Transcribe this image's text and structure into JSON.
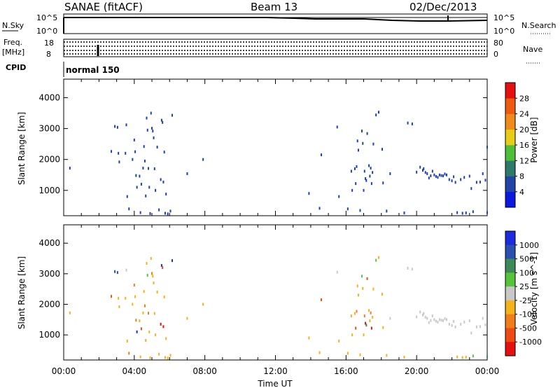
{
  "header": {
    "title": "SANAE (fitACF)",
    "beam": "Beam 13",
    "date": "02/Dec/2013"
  },
  "status_rows": {
    "nsky_label": "N.Sky",
    "nsearch_label": "N.Search",
    "freq_label_line1": "Freq.",
    "freq_label_line2": "[MHz]",
    "nave_label": "Nave",
    "cpid_label": "CPID",
    "cpid_value": "normal 150",
    "noise_ticks_left": [
      "10^5",
      "10^0"
    ],
    "noise_ticks_right": [
      "10^5",
      "10^0"
    ],
    "freq_ticks": [
      "18",
      "8"
    ],
    "nave_ticks": [
      "80",
      "0"
    ]
  },
  "colors": {
    "power_dots": "#1f3fb0",
    "axis": "#000000"
  },
  "chart_data": [
    {
      "type": "scatter",
      "title": "Power",
      "ylabel": "Slant Range [km]",
      "xlabel": "",
      "xlim": [
        0,
        24
      ],
      "ylim": [
        180,
        4600
      ],
      "yticks": [
        1000,
        2000,
        3000,
        4000
      ],
      "colorbar": {
        "label": "Power [dB]",
        "tick_labels": [
          "4",
          "8",
          "12",
          "16",
          "20",
          "24",
          "28"
        ],
        "colors": [
          "#0a18e0",
          "#2244a8",
          "#2e7a6a",
          "#4fbf3a",
          "#e8cc1a",
          "#f08a1a",
          "#ee5a10",
          "#e51010"
        ]
      },
      "points": [
        {
          "x": 0.35,
          "y": 1720
        },
        {
          "x": 2.7,
          "y": 2260
        },
        {
          "x": 2.9,
          "y": 3070
        },
        {
          "x": 3.05,
          "y": 3040
        },
        {
          "x": 3.1,
          "y": 2200
        },
        {
          "x": 3.15,
          "y": 1920
        },
        {
          "x": 3.5,
          "y": 2200
        },
        {
          "x": 3.55,
          "y": 3120
        },
        {
          "x": 3.6,
          "y": 800
        },
        {
          "x": 3.7,
          "y": 400
        },
        {
          "x": 3.9,
          "y": 2000
        },
        {
          "x": 4.0,
          "y": 2630
        },
        {
          "x": 4.05,
          "y": 2250
        },
        {
          "x": 4.1,
          "y": 1480
        },
        {
          "x": 4.15,
          "y": 1100
        },
        {
          "x": 4.3,
          "y": 1460
        },
        {
          "x": 4.35,
          "y": 280
        },
        {
          "x": 4.4,
          "y": 1200
        },
        {
          "x": 4.5,
          "y": 1720
        },
        {
          "x": 4.55,
          "y": 2420
        },
        {
          "x": 4.6,
          "y": 1950
        },
        {
          "x": 4.65,
          "y": 820
        },
        {
          "x": 4.7,
          "y": 3340
        },
        {
          "x": 4.75,
          "y": 2950
        },
        {
          "x": 4.8,
          "y": 1710
        },
        {
          "x": 4.85,
          "y": 1100
        },
        {
          "x": 4.9,
          "y": 250
        },
        {
          "x": 4.95,
          "y": 3500
        },
        {
          "x": 5.0,
          "y": 3010
        },
        {
          "x": 5.05,
          "y": 2920
        },
        {
          "x": 5.1,
          "y": 2700
        },
        {
          "x": 5.15,
          "y": 1700
        },
        {
          "x": 5.2,
          "y": 1000
        },
        {
          "x": 5.3,
          "y": 2400
        },
        {
          "x": 5.4,
          "y": 370
        },
        {
          "x": 5.5,
          "y": 1350
        },
        {
          "x": 5.55,
          "y": 3270
        },
        {
          "x": 5.6,
          "y": 3200
        },
        {
          "x": 5.65,
          "y": 1270
        },
        {
          "x": 5.7,
          "y": 2240
        },
        {
          "x": 5.75,
          "y": 260
        },
        {
          "x": 5.8,
          "y": 880
        },
        {
          "x": 5.9,
          "y": 240
        },
        {
          "x": 6.05,
          "y": 330
        },
        {
          "x": 6.15,
          "y": 3430
        },
        {
          "x": 7.0,
          "y": 1540
        },
        {
          "x": 7.9,
          "y": 2000
        },
        {
          "x": 13.9,
          "y": 900
        },
        {
          "x": 14.5,
          "y": 420
        },
        {
          "x": 14.6,
          "y": 2150
        },
        {
          "x": 15.5,
          "y": 3050
        },
        {
          "x": 15.6,
          "y": 800
        },
        {
          "x": 16.1,
          "y": 400
        },
        {
          "x": 16.3,
          "y": 1620
        },
        {
          "x": 16.35,
          "y": 1000
        },
        {
          "x": 16.5,
          "y": 1700
        },
        {
          "x": 16.55,
          "y": 1220
        },
        {
          "x": 16.6,
          "y": 1770
        },
        {
          "x": 16.65,
          "y": 2600
        },
        {
          "x": 16.7,
          "y": 2300
        },
        {
          "x": 16.8,
          "y": 350
        },
        {
          "x": 16.9,
          "y": 2920
        },
        {
          "x": 16.95,
          "y": 2520
        },
        {
          "x": 17.0,
          "y": 1000
        },
        {
          "x": 17.05,
          "y": 1620
        },
        {
          "x": 17.1,
          "y": 1380
        },
        {
          "x": 17.15,
          "y": 1320
        },
        {
          "x": 17.2,
          "y": 2840
        },
        {
          "x": 17.3,
          "y": 1800
        },
        {
          "x": 17.35,
          "y": 1460
        },
        {
          "x": 17.4,
          "y": 1720
        },
        {
          "x": 17.45,
          "y": 1220
        },
        {
          "x": 17.5,
          "y": 1580
        },
        {
          "x": 17.55,
          "y": 2500
        },
        {
          "x": 17.7,
          "y": 3440
        },
        {
          "x": 17.85,
          "y": 3530
        },
        {
          "x": 18.05,
          "y": 2330
        },
        {
          "x": 18.1,
          "y": 1240
        },
        {
          "x": 18.3,
          "y": 330
        },
        {
          "x": 18.5,
          "y": 1540
        },
        {
          "x": 19.3,
          "y": 270
        },
        {
          "x": 19.5,
          "y": 3180
        },
        {
          "x": 19.75,
          "y": 3150
        },
        {
          "x": 20.0,
          "y": 1590
        },
        {
          "x": 20.2,
          "y": 1750
        },
        {
          "x": 20.35,
          "y": 1650
        },
        {
          "x": 20.4,
          "y": 1700
        },
        {
          "x": 20.5,
          "y": 1580
        },
        {
          "x": 20.6,
          "y": 1540
        },
        {
          "x": 20.7,
          "y": 1400
        },
        {
          "x": 20.8,
          "y": 1470
        },
        {
          "x": 20.9,
          "y": 1620
        },
        {
          "x": 21.0,
          "y": 1500
        },
        {
          "x": 21.1,
          "y": 1450
        },
        {
          "x": 21.2,
          "y": 1420
        },
        {
          "x": 21.3,
          "y": 1500
        },
        {
          "x": 21.4,
          "y": 1480
        },
        {
          "x": 21.5,
          "y": 1470
        },
        {
          "x": 21.6,
          "y": 1530
        },
        {
          "x": 21.7,
          "y": 1500
        },
        {
          "x": 21.85,
          "y": 1350
        },
        {
          "x": 22.0,
          "y": 1310
        },
        {
          "x": 22.1,
          "y": 1440
        },
        {
          "x": 22.2,
          "y": 1260
        },
        {
          "x": 22.3,
          "y": 280
        },
        {
          "x": 22.5,
          "y": 1350
        },
        {
          "x": 22.6,
          "y": 260
        },
        {
          "x": 22.7,
          "y": 1420
        },
        {
          "x": 22.8,
          "y": 270
        },
        {
          "x": 23.0,
          "y": 1460
        },
        {
          "x": 23.1,
          "y": 1060
        },
        {
          "x": 23.2,
          "y": 310
        },
        {
          "x": 23.4,
          "y": 1260
        },
        {
          "x": 23.6,
          "y": 1270
        },
        {
          "x": 23.75,
          "y": 1540
        },
        {
          "x": 23.9,
          "y": 1330
        },
        {
          "x": 24.0,
          "y": 2400
        },
        {
          "x": 24.0,
          "y": 280
        }
      ]
    },
    {
      "type": "scatter",
      "title": "Velocity",
      "ylabel": "Slant Range [km]",
      "xlabel": "Time UT",
      "xlim": [
        0,
        24
      ],
      "ylim": [
        180,
        4600
      ],
      "yticks": [
        1000,
        2000,
        3000,
        4000
      ],
      "xticks": [
        "00:00",
        "04:00",
        "08:00",
        "12:00",
        "16:00",
        "20:00",
        "00:00"
      ],
      "colorbar": {
        "label": "Velocity [m s^-1]",
        "tick_labels": [
          "1000",
          "500",
          "100",
          "25",
          "-25",
          "-100",
          "-500",
          "-1000"
        ],
        "colors": [
          "#1c2ae0",
          "#2a4fb0",
          "#3b8a5a",
          "#55c43a",
          "#c8c8c8",
          "#f2b21a",
          "#f07d18",
          "#ee4a14",
          "#e51010"
        ]
      },
      "points": [
        {
          "x": 0.35,
          "y": 1720,
          "c": 5
        },
        {
          "x": 2.7,
          "y": 2260,
          "c": 7
        },
        {
          "x": 2.9,
          "y": 3070,
          "c": 1
        },
        {
          "x": 3.05,
          "y": 3040,
          "c": 1
        },
        {
          "x": 3.1,
          "y": 2200,
          "c": 5
        },
        {
          "x": 3.15,
          "y": 1920,
          "c": 5
        },
        {
          "x": 3.5,
          "y": 2200,
          "c": 5
        },
        {
          "x": 3.55,
          "y": 3120,
          "c": 4
        },
        {
          "x": 3.6,
          "y": 800,
          "c": 5
        },
        {
          "x": 3.7,
          "y": 400,
          "c": 6
        },
        {
          "x": 3.9,
          "y": 2000,
          "c": 5
        },
        {
          "x": 4.0,
          "y": 2630,
          "c": 6
        },
        {
          "x": 4.05,
          "y": 2250,
          "c": 5
        },
        {
          "x": 4.1,
          "y": 1480,
          "c": 6
        },
        {
          "x": 4.15,
          "y": 1100,
          "c": 0
        },
        {
          "x": 4.3,
          "y": 1460,
          "c": 5
        },
        {
          "x": 4.35,
          "y": 280,
          "c": 5
        },
        {
          "x": 4.4,
          "y": 1200,
          "c": 7
        },
        {
          "x": 4.5,
          "y": 1720,
          "c": 5
        },
        {
          "x": 4.55,
          "y": 2420,
          "c": 5
        },
        {
          "x": 4.6,
          "y": 1950,
          "c": 6
        },
        {
          "x": 4.65,
          "y": 820,
          "c": 5
        },
        {
          "x": 4.7,
          "y": 3340,
          "c": 5
        },
        {
          "x": 4.75,
          "y": 2950,
          "c": 3
        },
        {
          "x": 4.8,
          "y": 1710,
          "c": 6
        },
        {
          "x": 4.85,
          "y": 1100,
          "c": 5
        },
        {
          "x": 4.9,
          "y": 250,
          "c": 5
        },
        {
          "x": 4.95,
          "y": 3500,
          "c": 5
        },
        {
          "x": 5.0,
          "y": 3010,
          "c": 6
        },
        {
          "x": 5.05,
          "y": 2920,
          "c": 5
        },
        {
          "x": 5.1,
          "y": 2700,
          "c": 5
        },
        {
          "x": 5.15,
          "y": 1700,
          "c": 5
        },
        {
          "x": 5.2,
          "y": 1000,
          "c": 5
        },
        {
          "x": 5.3,
          "y": 2400,
          "c": 5
        },
        {
          "x": 5.4,
          "y": 370,
          "c": 5
        },
        {
          "x": 5.5,
          "y": 1350,
          "c": 8
        },
        {
          "x": 5.55,
          "y": 3270,
          "c": 0
        },
        {
          "x": 5.6,
          "y": 3200,
          "c": 7
        },
        {
          "x": 5.65,
          "y": 1270,
          "c": 8
        },
        {
          "x": 5.7,
          "y": 2240,
          "c": 5
        },
        {
          "x": 5.75,
          "y": 260,
          "c": 5
        },
        {
          "x": 5.8,
          "y": 880,
          "c": 5
        },
        {
          "x": 5.9,
          "y": 240,
          "c": 5
        },
        {
          "x": 6.05,
          "y": 330,
          "c": 5
        },
        {
          "x": 6.15,
          "y": 3430,
          "c": 0
        },
        {
          "x": 7.0,
          "y": 1540,
          "c": 5
        },
        {
          "x": 7.9,
          "y": 2000,
          "c": 5
        },
        {
          "x": 13.9,
          "y": 900,
          "c": 5
        },
        {
          "x": 14.5,
          "y": 420,
          "c": 5
        },
        {
          "x": 14.6,
          "y": 2150,
          "c": 7
        },
        {
          "x": 15.5,
          "y": 3050,
          "c": 4
        },
        {
          "x": 15.6,
          "y": 800,
          "c": 5
        },
        {
          "x": 16.1,
          "y": 400,
          "c": 5
        },
        {
          "x": 16.3,
          "y": 1620,
          "c": 5
        },
        {
          "x": 16.35,
          "y": 1000,
          "c": 5
        },
        {
          "x": 16.5,
          "y": 1700,
          "c": 5
        },
        {
          "x": 16.55,
          "y": 1220,
          "c": 7
        },
        {
          "x": 16.6,
          "y": 1770,
          "c": 6
        },
        {
          "x": 16.65,
          "y": 2600,
          "c": 5
        },
        {
          "x": 16.7,
          "y": 2300,
          "c": 5
        },
        {
          "x": 16.8,
          "y": 350,
          "c": 5
        },
        {
          "x": 16.9,
          "y": 2920,
          "c": 3
        },
        {
          "x": 16.95,
          "y": 2520,
          "c": 5
        },
        {
          "x": 17.0,
          "y": 1000,
          "c": 5
        },
        {
          "x": 17.05,
          "y": 1620,
          "c": 6
        },
        {
          "x": 17.1,
          "y": 1380,
          "c": 8
        },
        {
          "x": 17.15,
          "y": 1320,
          "c": 2
        },
        {
          "x": 17.2,
          "y": 2840,
          "c": 7
        },
        {
          "x": 17.3,
          "y": 1800,
          "c": 5
        },
        {
          "x": 17.35,
          "y": 1460,
          "c": 5
        },
        {
          "x": 17.4,
          "y": 1720,
          "c": 6
        },
        {
          "x": 17.45,
          "y": 1220,
          "c": 8
        },
        {
          "x": 17.5,
          "y": 1580,
          "c": 5
        },
        {
          "x": 17.55,
          "y": 2500,
          "c": 5
        },
        {
          "x": 17.7,
          "y": 3440,
          "c": 3
        },
        {
          "x": 17.85,
          "y": 3530,
          "c": 5
        },
        {
          "x": 18.05,
          "y": 2330,
          "c": 5
        },
        {
          "x": 18.1,
          "y": 1240,
          "c": 5
        },
        {
          "x": 18.3,
          "y": 330,
          "c": 5
        },
        {
          "x": 18.5,
          "y": 1540,
          "c": 4
        },
        {
          "x": 19.3,
          "y": 270,
          "c": 5
        },
        {
          "x": 19.5,
          "y": 3180,
          "c": 4
        },
        {
          "x": 19.75,
          "y": 3150,
          "c": 4
        },
        {
          "x": 20.0,
          "y": 1590,
          "c": 4
        },
        {
          "x": 20.2,
          "y": 1750,
          "c": 4
        },
        {
          "x": 20.35,
          "y": 1650,
          "c": 4
        },
        {
          "x": 20.4,
          "y": 1700,
          "c": 4
        },
        {
          "x": 20.5,
          "y": 1580,
          "c": 4
        },
        {
          "x": 20.6,
          "y": 1540,
          "c": 4
        },
        {
          "x": 20.7,
          "y": 1400,
          "c": 4
        },
        {
          "x": 20.8,
          "y": 1470,
          "c": 4
        },
        {
          "x": 20.9,
          "y": 1620,
          "c": 4
        },
        {
          "x": 21.0,
          "y": 1500,
          "c": 4
        },
        {
          "x": 21.1,
          "y": 1450,
          "c": 4
        },
        {
          "x": 21.2,
          "y": 1420,
          "c": 4
        },
        {
          "x": 21.3,
          "y": 1500,
          "c": 4
        },
        {
          "x": 21.4,
          "y": 1480,
          "c": 4
        },
        {
          "x": 21.5,
          "y": 1470,
          "c": 4
        },
        {
          "x": 21.6,
          "y": 1530,
          "c": 4
        },
        {
          "x": 21.7,
          "y": 1500,
          "c": 4
        },
        {
          "x": 21.85,
          "y": 1350,
          "c": 4
        },
        {
          "x": 22.0,
          "y": 1310,
          "c": 4
        },
        {
          "x": 22.1,
          "y": 1440,
          "c": 4
        },
        {
          "x": 22.2,
          "y": 1260,
          "c": 4
        },
        {
          "x": 22.3,
          "y": 280,
          "c": 5
        },
        {
          "x": 22.5,
          "y": 1350,
          "c": 4
        },
        {
          "x": 22.6,
          "y": 260,
          "c": 5
        },
        {
          "x": 22.7,
          "y": 1420,
          "c": 4
        },
        {
          "x": 22.8,
          "y": 270,
          "c": 5
        },
        {
          "x": 23.0,
          "y": 1460,
          "c": 4
        },
        {
          "x": 23.1,
          "y": 1060,
          "c": 4
        },
        {
          "x": 23.2,
          "y": 310,
          "c": 3
        },
        {
          "x": 23.4,
          "y": 1260,
          "c": 4
        },
        {
          "x": 23.6,
          "y": 1270,
          "c": 4
        },
        {
          "x": 23.75,
          "y": 1540,
          "c": 4
        },
        {
          "x": 23.9,
          "y": 1330,
          "c": 4
        },
        {
          "x": 24.0,
          "y": 280,
          "c": 2
        }
      ]
    }
  ]
}
